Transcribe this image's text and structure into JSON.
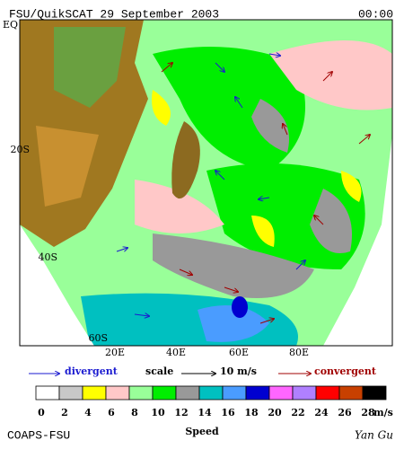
{
  "header": {
    "title": "FSU/QuikSCAT 29 September 2003",
    "time": "00:00"
  },
  "map": {
    "lat_labels": [
      "EQ",
      "20S",
      "40S",
      "60S"
    ],
    "lon_labels": [
      "20E",
      "40E",
      "60E",
      "80E"
    ]
  },
  "legend": {
    "divergent": "divergent",
    "scale": "scale",
    "scale_value": "10 m/s",
    "convergent": "convergent"
  },
  "colorbar": {
    "colors": [
      "#ffffff",
      "#c8c8c8",
      "#ffff00",
      "#ffc8c8",
      "#99ff99",
      "#00ee00",
      "#999999",
      "#00c0c0",
      "#4a9cff",
      "#0000d0",
      "#ff66ff",
      "#b080ff",
      "#ff0000",
      "#c84000",
      "#000000"
    ],
    "labels": [
      0,
      2,
      4,
      6,
      8,
      10,
      12,
      14,
      16,
      18,
      20,
      22,
      24,
      26,
      28
    ],
    "unit": "m/s",
    "title": "Speed"
  },
  "footer": {
    "credit": "COAPS-FSU",
    "author": "Yan Gu"
  }
}
